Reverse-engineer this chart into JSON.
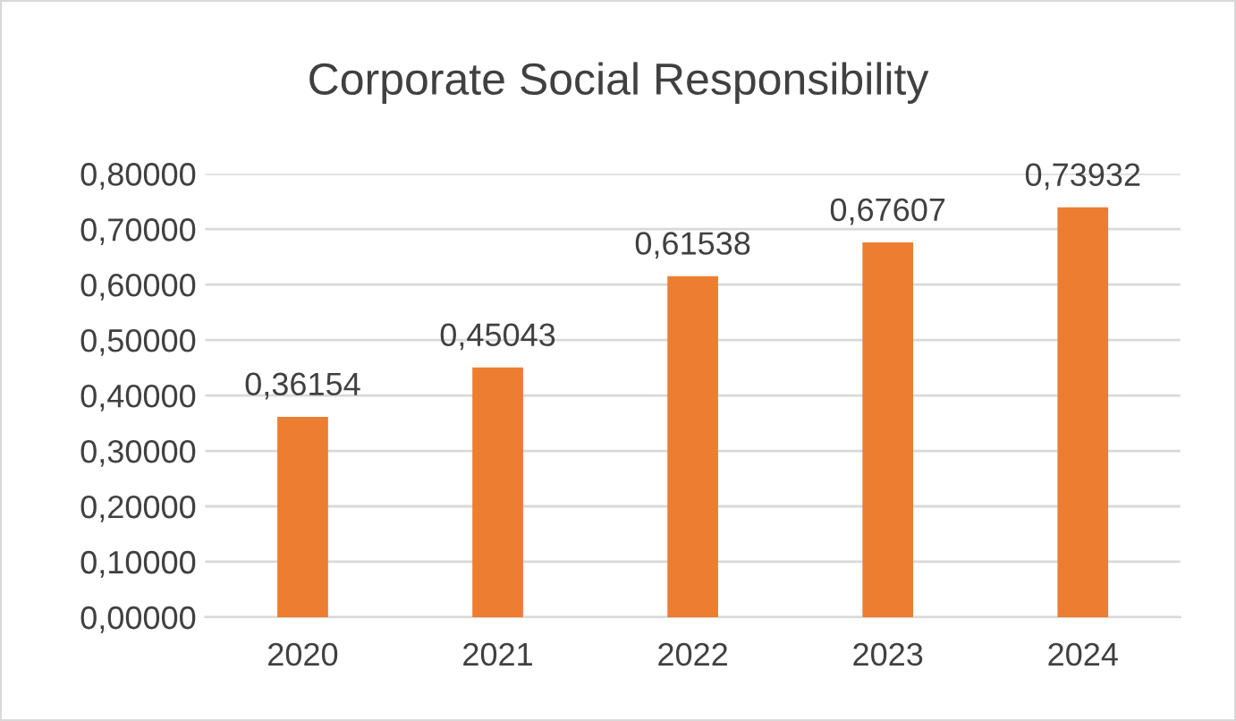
{
  "chart_data": {
    "type": "bar",
    "title": "Corporate Social Responsibility",
    "categories": [
      "2020",
      "2021",
      "2022",
      "2023",
      "2024"
    ],
    "values": [
      0.36154,
      0.45043,
      0.61538,
      0.67607,
      0.73932
    ],
    "value_labels": [
      "0,36154",
      "0,45043",
      "0,61538",
      "0,67607",
      "0,73932"
    ],
    "color": "#ed7d31",
    "ylim": [
      0,
      0.8
    ],
    "yticks": [
      {
        "value": 0,
        "label": "0,00000"
      },
      {
        "value": 0.1,
        "label": "0,10000"
      },
      {
        "value": 0.2,
        "label": "0,20000"
      },
      {
        "value": 0.3,
        "label": "0,30000"
      },
      {
        "value": 0.4,
        "label": "0,40000"
      },
      {
        "value": 0.5,
        "label": "0,50000"
      },
      {
        "value": 0.6,
        "label": "0,60000"
      },
      {
        "value": 0.7,
        "label": "0,70000"
      },
      {
        "value": 0.8,
        "label": "0,80000"
      }
    ],
    "grid": "y",
    "legend": false
  }
}
